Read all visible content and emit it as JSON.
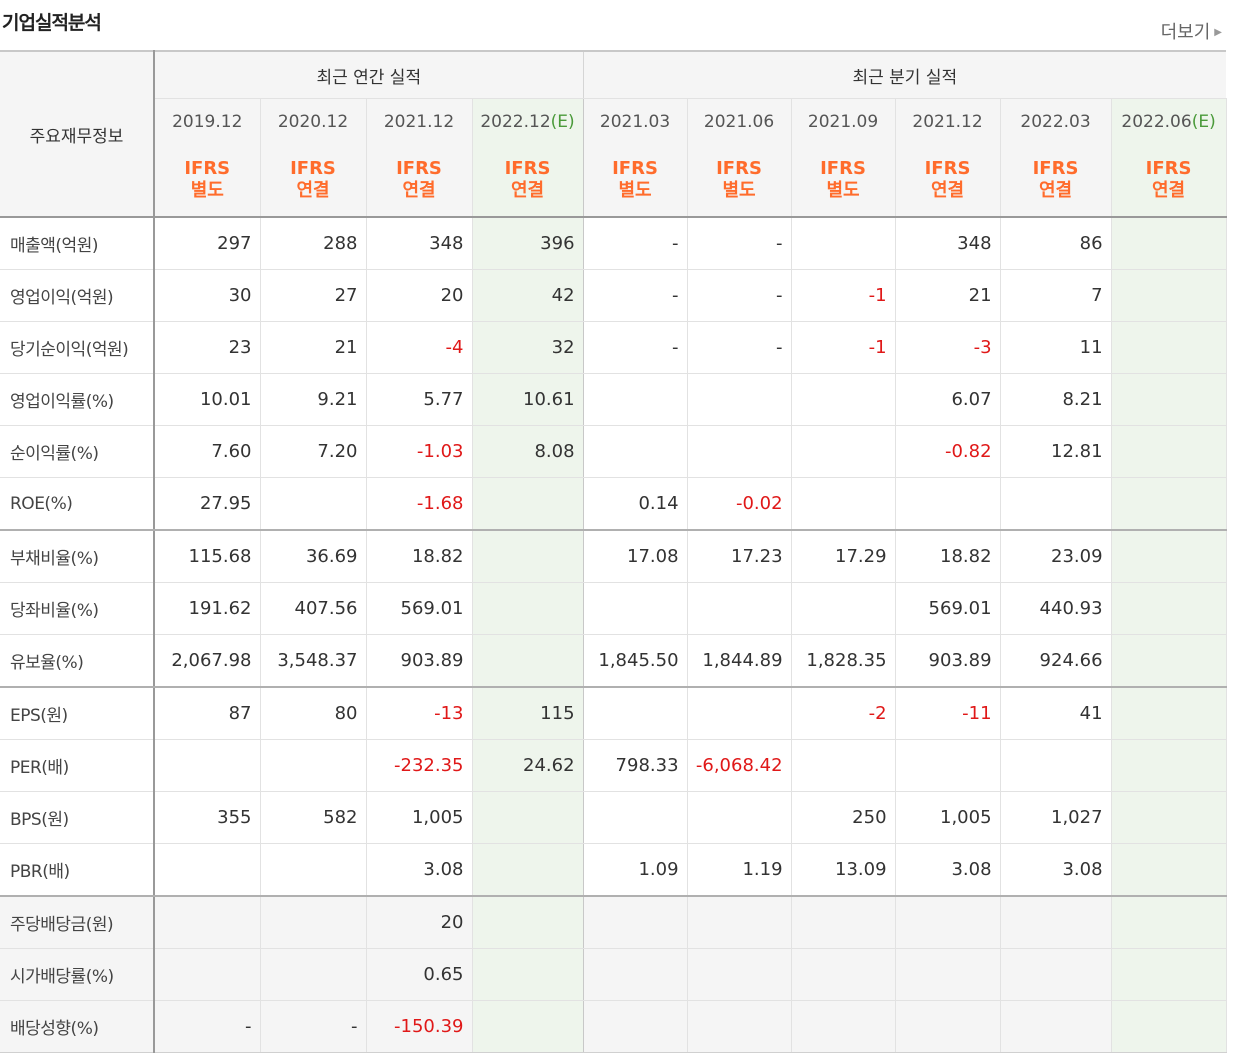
{
  "title": "기업실적분석",
  "more_label": "더보기",
  "header": {
    "label_col": "주요재무정보",
    "annual_group": "최근 연간 실적",
    "quarter_group": "최근 분기 실적",
    "periods": [
      {
        "date": "2019.12",
        "est": "",
        "ifrs": "IFRS",
        "basis": "별도"
      },
      {
        "date": "2020.12",
        "est": "",
        "ifrs": "IFRS",
        "basis": "연결"
      },
      {
        "date": "2021.12",
        "est": "",
        "ifrs": "IFRS",
        "basis": "연결"
      },
      {
        "date": "2022.12",
        "est": "(E)",
        "ifrs": "IFRS",
        "basis": "연결"
      },
      {
        "date": "2021.03",
        "est": "",
        "ifrs": "IFRS",
        "basis": "별도"
      },
      {
        "date": "2021.06",
        "est": "",
        "ifrs": "IFRS",
        "basis": "별도"
      },
      {
        "date": "2021.09",
        "est": "",
        "ifrs": "IFRS",
        "basis": "별도"
      },
      {
        "date": "2021.12",
        "est": "",
        "ifrs": "IFRS",
        "basis": "연결"
      },
      {
        "date": "2022.03",
        "est": "",
        "ifrs": "IFRS",
        "basis": "연결"
      },
      {
        "date": "2022.06",
        "est": "(E)",
        "ifrs": "IFRS",
        "basis": "연결"
      }
    ]
  },
  "rows": [
    {
      "label": "매출액(억원)",
      "values": [
        "297",
        "288",
        "348",
        "396",
        "-",
        "-",
        "",
        "348",
        "86",
        ""
      ]
    },
    {
      "label": "영업이익(억원)",
      "values": [
        "30",
        "27",
        "20",
        "42",
        "-",
        "-",
        "-1",
        "21",
        "7",
        ""
      ]
    },
    {
      "label": "당기순이익(억원)",
      "values": [
        "23",
        "21",
        "-4",
        "32",
        "-",
        "-",
        "-1",
        "-3",
        "11",
        ""
      ]
    },
    {
      "label": "영업이익률(%)",
      "values": [
        "10.01",
        "9.21",
        "5.77",
        "10.61",
        "",
        "",
        "",
        "6.07",
        "8.21",
        ""
      ]
    },
    {
      "label": "순이익률(%)",
      "values": [
        "7.60",
        "7.20",
        "-1.03",
        "8.08",
        "",
        "",
        "",
        "-0.82",
        "12.81",
        ""
      ]
    },
    {
      "label": "ROE(%)",
      "values": [
        "27.95",
        "",
        "-1.68",
        "",
        "0.14",
        "-0.02",
        "",
        "",
        "",
        ""
      ]
    },
    {
      "label": "부채비율(%)",
      "values": [
        "115.68",
        "36.69",
        "18.82",
        "",
        "17.08",
        "17.23",
        "17.29",
        "18.82",
        "23.09",
        ""
      ]
    },
    {
      "label": "당좌비율(%)",
      "values": [
        "191.62",
        "407.56",
        "569.01",
        "",
        "",
        "",
        "",
        "569.01",
        "440.93",
        ""
      ]
    },
    {
      "label": "유보율(%)",
      "values": [
        "2,067.98",
        "3,548.37",
        "903.89",
        "",
        "1,845.50",
        "1,844.89",
        "1,828.35",
        "903.89",
        "924.66",
        ""
      ]
    },
    {
      "label": "EPS(원)",
      "values": [
        "87",
        "80",
        "-13",
        "115",
        "",
        "",
        "-2",
        "-11",
        "41",
        ""
      ]
    },
    {
      "label": "PER(배)",
      "values": [
        "",
        "",
        "-232.35",
        "24.62",
        "798.33",
        "-6,068.42",
        "",
        "",
        "",
        ""
      ]
    },
    {
      "label": "BPS(원)",
      "values": [
        "355",
        "582",
        "1,005",
        "",
        "",
        "",
        "250",
        "1,005",
        "1,027",
        ""
      ]
    },
    {
      "label": "PBR(배)",
      "values": [
        "",
        "",
        "3.08",
        "",
        "1.09",
        "1.19",
        "13.09",
        "3.08",
        "3.08",
        ""
      ]
    },
    {
      "label": "주당배당금(원)",
      "values": [
        "",
        "",
        "20",
        "",
        "",
        "",
        "",
        "",
        "",
        ""
      ]
    },
    {
      "label": "시가배당률(%)",
      "values": [
        "",
        "",
        "0.65",
        "",
        "",
        "",
        "",
        "",
        "",
        ""
      ]
    },
    {
      "label": "배당성향(%)",
      "values": [
        "-",
        "-",
        "-150.39",
        "",
        "",
        "",
        "",
        "",
        "",
        ""
      ]
    }
  ]
}
